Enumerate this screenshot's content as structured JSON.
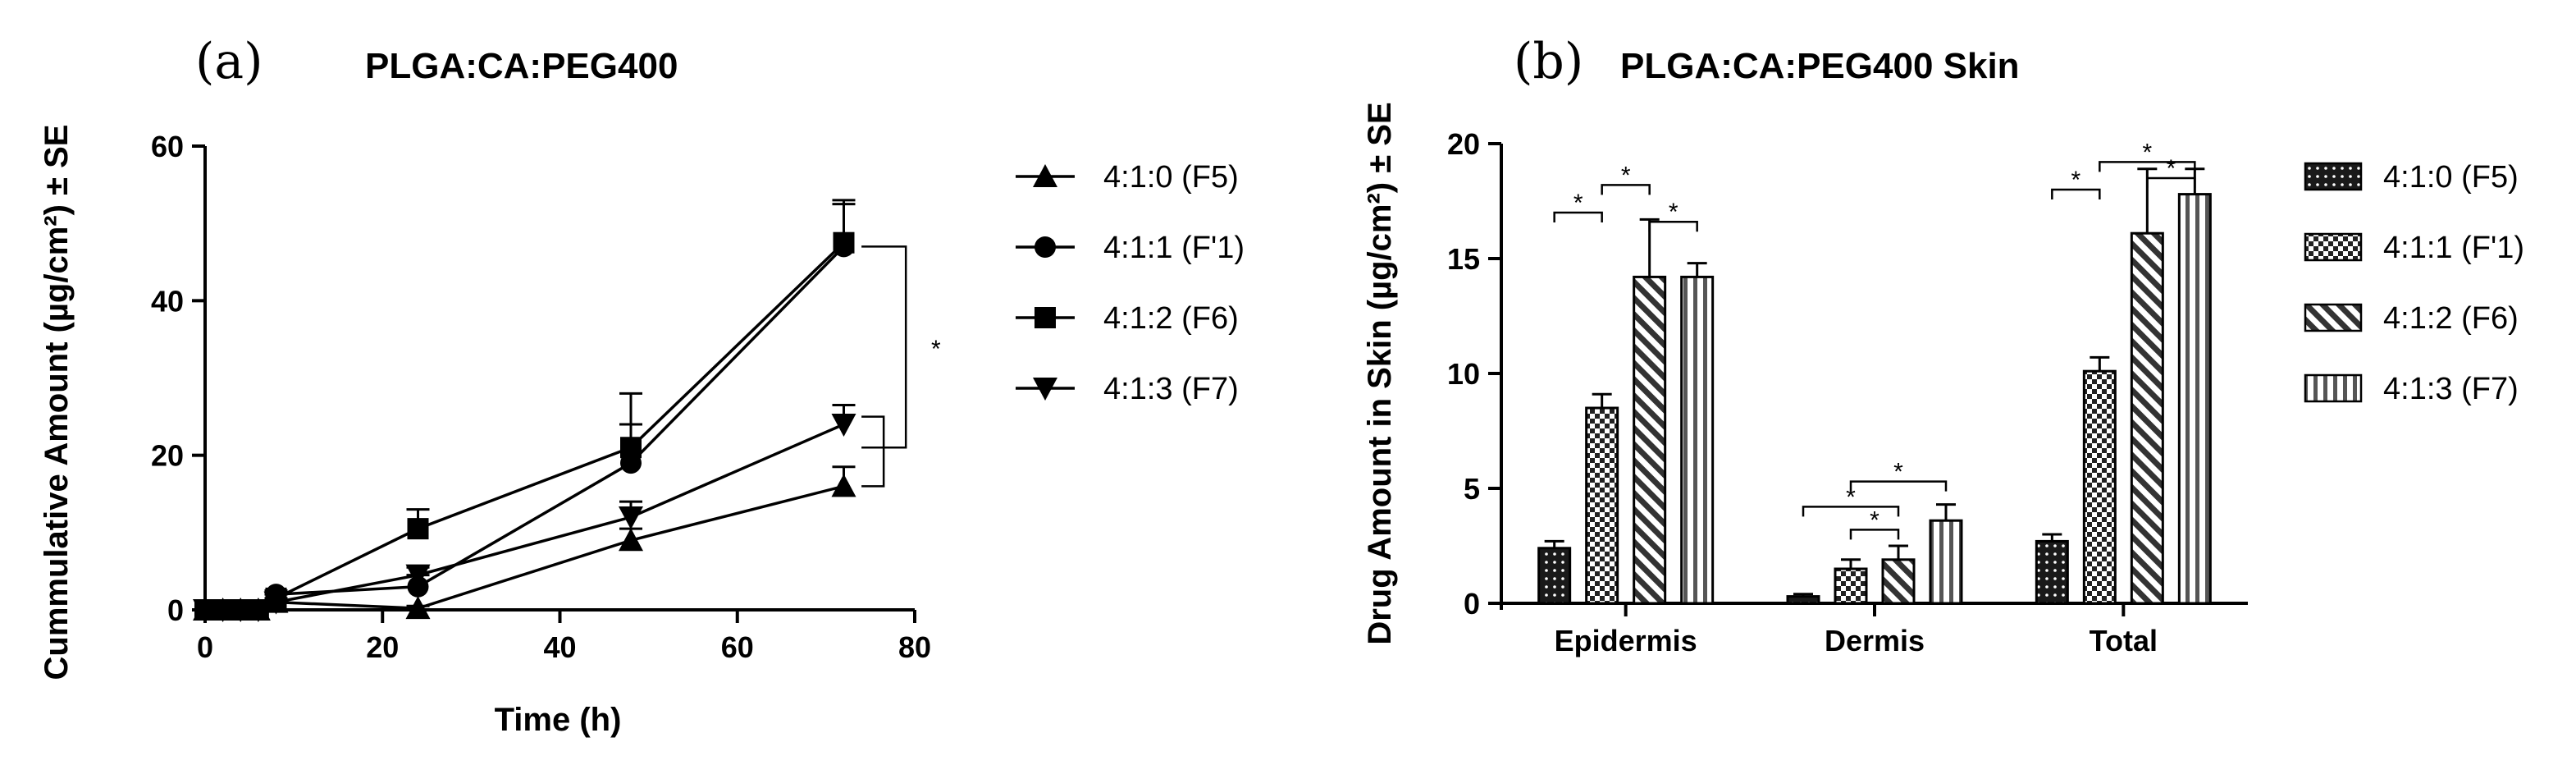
{
  "chart_data": [
    {
      "panel": "(a)",
      "type": "line",
      "title": "PLGA:CA:PEG400",
      "xlabel": "Time (h)",
      "ylabel": "Cummulative Amount (µg/cm²) ± SE",
      "xlim": [
        0,
        80
      ],
      "ylim": [
        0,
        60
      ],
      "xticks": [
        0,
        20,
        40,
        60,
        80
      ],
      "yticks": [
        0,
        20,
        40,
        60
      ],
      "significance": "*",
      "series": [
        {
          "name": "4:1:0 (F5)",
          "marker": "triangle-up",
          "x": [
            0,
            2,
            4,
            6,
            8,
            24,
            48,
            72
          ],
          "y": [
            0,
            0,
            0,
            0,
            1,
            0.2,
            9,
            16
          ],
          "se": [
            0,
            0,
            0,
            0,
            0.5,
            0.3,
            1.5,
            2.5
          ]
        },
        {
          "name": "4:1:1 (F'1)",
          "marker": "circle",
          "x": [
            0,
            2,
            4,
            6,
            8,
            24,
            48,
            72
          ],
          "y": [
            0,
            0,
            0,
            0,
            2,
            3,
            19,
            47
          ],
          "se": [
            0,
            0,
            0,
            0,
            0.5,
            1.5,
            5,
            6
          ]
        },
        {
          "name": "4:1:2 (F6)",
          "marker": "square",
          "x": [
            0,
            2,
            4,
            6,
            8,
            24,
            48,
            72
          ],
          "y": [
            0,
            0,
            0,
            0,
            1.5,
            10.5,
            21,
            47.5
          ],
          "se": [
            0,
            0,
            0,
            0,
            0.5,
            2.5,
            7,
            5
          ]
        },
        {
          "name": "4:1:3 (F7)",
          "marker": "triangle-down",
          "x": [
            0,
            2,
            4,
            6,
            8,
            24,
            48,
            72
          ],
          "y": [
            0,
            0,
            0,
            0,
            1,
            4.5,
            12,
            24
          ],
          "se": [
            0,
            0,
            0,
            0,
            0.5,
            1,
            2,
            2.5
          ]
        }
      ]
    },
    {
      "panel": "(b)",
      "type": "bar",
      "title": "PLGA:CA:PEG400 Skin",
      "xlabel": "",
      "ylabel": "Drug Amount in Skin (µg/cm²) ± SE",
      "ylim": [
        0,
        20
      ],
      "yticks": [
        0,
        5,
        10,
        15,
        20
      ],
      "categories": [
        "Epidermis",
        "Dermis",
        "Total"
      ],
      "significance": "*",
      "series": [
        {
          "name": "4:1:0 (F5)",
          "pattern": "dots",
          "values": [
            2.4,
            0.3,
            2.7
          ],
          "se": [
            0.3,
            0.1,
            0.3
          ]
        },
        {
          "name": "4:1:1 (F'1)",
          "pattern": "checker",
          "values": [
            8.5,
            1.5,
            10.1
          ],
          "se": [
            0.6,
            0.4,
            0.6
          ]
        },
        {
          "name": "4:1:2 (F6)",
          "pattern": "diagonal",
          "values": [
            14.2,
            1.9,
            16.1
          ],
          "se": [
            2.5,
            0.6,
            2.8
          ]
        },
        {
          "name": "4:1:3 (F7)",
          "pattern": "vertical",
          "values": [
            14.2,
            3.6,
            17.8
          ],
          "se": [
            0.6,
            0.7,
            1.1
          ]
        }
      ]
    }
  ]
}
